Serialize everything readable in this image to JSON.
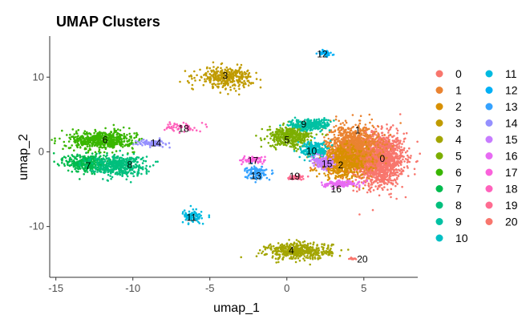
{
  "chart_data": {
    "type": "scatter",
    "title": "UMAP Clusters",
    "xlabel": "umap_1",
    "ylabel": "umap_2",
    "xlim": [
      -15.4,
      8.5
    ],
    "ylim": [
      -16.8,
      15.5
    ],
    "xticks": [
      -15,
      -10,
      -5,
      0,
      5
    ],
    "yticks": [
      -10,
      0,
      10
    ],
    "xtick_labels": [
      "-15",
      "-10",
      "-5",
      "0",
      "5"
    ],
    "ytick_labels": [
      "-10",
      "0",
      "10"
    ],
    "grid": false,
    "legend_position": "right",
    "clusters": [
      {
        "name": "0",
        "color": "#F8766D",
        "x": 6.0,
        "y": -1.0,
        "sx": 1.5,
        "sy": 3.2,
        "n": 1500
      },
      {
        "name": "1",
        "color": "#EA8331",
        "x": 4.2,
        "y": 0.5,
        "sx": 1.6,
        "sy": 2.8,
        "n": 1100
      },
      {
        "name": "2",
        "color": "#D89000",
        "x": 3.6,
        "y": -1.5,
        "sx": 1.5,
        "sy": 1.8,
        "n": 500
      },
      {
        "name": "3",
        "color": "#C09B00",
        "x": -4.0,
        "y": 10.0,
        "sx": 1.6,
        "sy": 1.2,
        "n": 350
      },
      {
        "name": "4",
        "color": "#A3A500",
        "x": 0.8,
        "y": -13.3,
        "sx": 1.9,
        "sy": 1.0,
        "n": 450
      },
      {
        "name": "5",
        "color": "#7CAE00",
        "x": 0.2,
        "y": 2.0,
        "sx": 1.3,
        "sy": 1.2,
        "n": 400
      },
      {
        "name": "6",
        "color": "#39B600",
        "x": -12.0,
        "y": 1.6,
        "sx": 1.9,
        "sy": 1.1,
        "n": 550
      },
      {
        "name": "7",
        "color": "#00BB4E",
        "x": -13.0,
        "y": -1.5,
        "sx": 1.2,
        "sy": 1.1,
        "n": 350
      },
      {
        "name": "8",
        "color": "#00BF7D",
        "x": -11.0,
        "y": -1.8,
        "sx": 1.6,
        "sy": 1.2,
        "n": 450
      },
      {
        "name": "9",
        "color": "#00C1A3",
        "x": 1.5,
        "y": 3.6,
        "sx": 1.2,
        "sy": 0.7,
        "n": 260
      },
      {
        "name": "10",
        "color": "#00BFC4",
        "x": 1.8,
        "y": 0.3,
        "sx": 0.8,
        "sy": 1.0,
        "n": 220
      },
      {
        "name": "11",
        "color": "#00BAE0",
        "x": -6.1,
        "y": -8.7,
        "sx": 0.6,
        "sy": 0.7,
        "n": 100
      },
      {
        "name": "12",
        "color": "#00B0F6",
        "x": 2.5,
        "y": 13.2,
        "sx": 0.4,
        "sy": 0.4,
        "n": 50
      },
      {
        "name": "13",
        "color": "#35A2FF",
        "x": -2.0,
        "y": -2.8,
        "sx": 0.6,
        "sy": 0.8,
        "n": 130
      },
      {
        "name": "14",
        "color": "#9590FF",
        "x": -8.8,
        "y": 1.2,
        "sx": 0.8,
        "sy": 0.4,
        "n": 100
      },
      {
        "name": "15",
        "color": "#C77CFF",
        "x": 2.4,
        "y": -1.5,
        "sx": 0.7,
        "sy": 0.7,
        "n": 130
      },
      {
        "name": "16",
        "color": "#E76BF3",
        "x": 3.5,
        "y": -4.3,
        "sx": 1.1,
        "sy": 0.4,
        "n": 130
      },
      {
        "name": "17",
        "color": "#FA62DB",
        "x": -2.2,
        "y": -1.1,
        "sx": 0.7,
        "sy": 0.4,
        "n": 70
      },
      {
        "name": "18",
        "color": "#FF62BC",
        "x": -6.8,
        "y": 3.3,
        "sx": 0.9,
        "sy": 0.6,
        "n": 60
      },
      {
        "name": "19",
        "color": "#FF6C91",
        "x": 0.6,
        "y": -3.4,
        "sx": 0.5,
        "sy": 0.3,
        "n": 45
      },
      {
        "name": "20",
        "color": "#F8766D",
        "x": 4.3,
        "y": -14.3,
        "sx": 0.2,
        "sy": 0.15,
        "n": 15
      }
    ],
    "labels": [
      {
        "text": "0",
        "x": 6.2,
        "y": -0.9
      },
      {
        "text": "1",
        "x": 4.6,
        "y": 2.9
      },
      {
        "text": "2",
        "x": 3.5,
        "y": -1.8
      },
      {
        "text": "3",
        "x": -4.0,
        "y": 10.2
      },
      {
        "text": "4",
        "x": 0.3,
        "y": -13.2
      },
      {
        "text": "5",
        "x": 0.0,
        "y": 1.6
      },
      {
        "text": "6",
        "x": -11.8,
        "y": 1.6
      },
      {
        "text": "7",
        "x": -12.9,
        "y": -1.9
      },
      {
        "text": "8",
        "x": -10.2,
        "y": -1.7
      },
      {
        "text": "9",
        "x": 1.1,
        "y": 3.7
      },
      {
        "text": "10",
        "x": 1.6,
        "y": 0.1
      },
      {
        "text": "11",
        "x": -6.2,
        "y": -8.8
      },
      {
        "text": "12",
        "x": 2.3,
        "y": 13.1
      },
      {
        "text": "13",
        "x": -2.0,
        "y": -3.2
      },
      {
        "text": "14",
        "x": -8.5,
        "y": 1.2
      },
      {
        "text": "15",
        "x": 2.6,
        "y": -1.6
      },
      {
        "text": "16",
        "x": 3.2,
        "y": -5.0
      },
      {
        "text": "17",
        "x": -2.2,
        "y": -1.2
      },
      {
        "text": "18",
        "x": -6.7,
        "y": 3.1
      },
      {
        "text": "19",
        "x": 0.5,
        "y": -3.3
      },
      {
        "text": "20",
        "x": 4.9,
        "y": -14.4
      }
    ]
  }
}
